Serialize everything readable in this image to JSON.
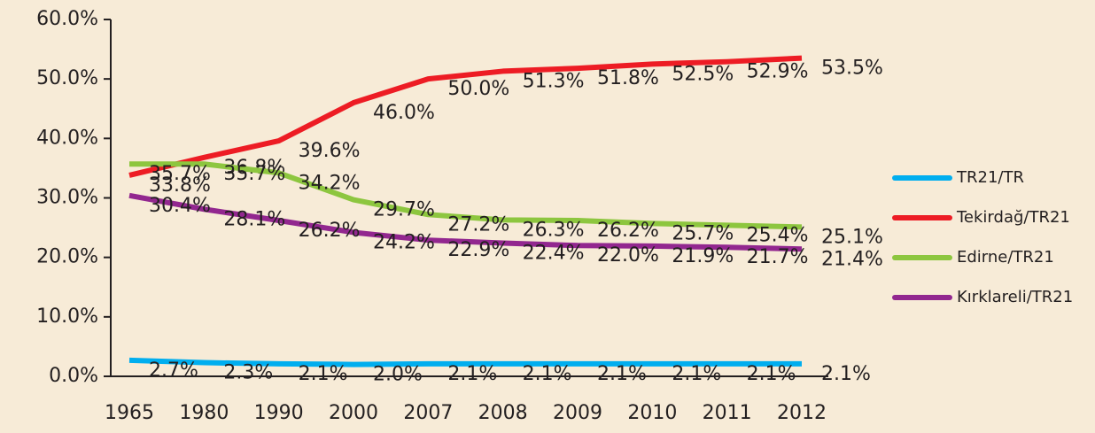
{
  "chart_data": {
    "type": "line",
    "categories": [
      "1965",
      "1980",
      "1990",
      "2000",
      "2007",
      "2008",
      "2009",
      "2010",
      "2011",
      "2012"
    ],
    "ylim": [
      0,
      60
    ],
    "yticks": [
      {
        "value": 0,
        "label": "0.0%"
      },
      {
        "value": 10,
        "label": "10.0%"
      },
      {
        "value": 20,
        "label": "20.0%"
      },
      {
        "value": 30,
        "label": "30.0%"
      },
      {
        "value": 40,
        "label": "40.0%"
      },
      {
        "value": 50,
        "label": "50.0%"
      },
      {
        "value": 60,
        "label": "60.0%"
      }
    ],
    "legend": "right",
    "series": [
      {
        "name": "TR21/TR",
        "color": "#00aeef",
        "values": [
          2.7,
          2.3,
          2.1,
          2.0,
          2.1,
          2.1,
          2.1,
          2.1,
          2.1,
          2.1
        ],
        "value_labels": [
          "2.7%",
          "2.3%",
          "2.1%",
          "2.0%",
          "2.1%",
          "2.1%",
          "2.1%",
          "2.1%",
          "2.1%",
          "2.1%"
        ]
      },
      {
        "name": "Tekirdağ/TR21",
        "color": "#ed1c24",
        "values": [
          33.8,
          36.8,
          39.6,
          46.0,
          50.0,
          51.3,
          51.8,
          52.5,
          52.9,
          53.5
        ],
        "value_labels": [
          "33.8%",
          "36.8%",
          "39.6%",
          "46.0%",
          "50.0%",
          "51.3%",
          "51.8%",
          "52.5%",
          "52.9%",
          "53.5%"
        ]
      },
      {
        "name": "Edirne/TR21",
        "color": "#8dc63f",
        "values": [
          35.7,
          35.7,
          34.2,
          29.7,
          27.2,
          26.3,
          26.2,
          25.7,
          25.4,
          25.1
        ],
        "value_labels": [
          "35.7%",
          "35.7%",
          "34.2%",
          "29.7%",
          "27.2%",
          "26.3%",
          "26.2%",
          "25.7%",
          "25.4%",
          "25.1%"
        ]
      },
      {
        "name": "Kırklareli/TR21",
        "color": "#92278f",
        "values": [
          30.4,
          28.1,
          26.2,
          24.2,
          22.9,
          22.4,
          22.0,
          21.9,
          21.7,
          21.4
        ],
        "value_labels": [
          "30.4%",
          "28.1%",
          "26.2%",
          "24.2%",
          "22.9%",
          "22.4%",
          "22.0%",
          "21.9%",
          "21.7%",
          "21.4%"
        ]
      }
    ]
  }
}
